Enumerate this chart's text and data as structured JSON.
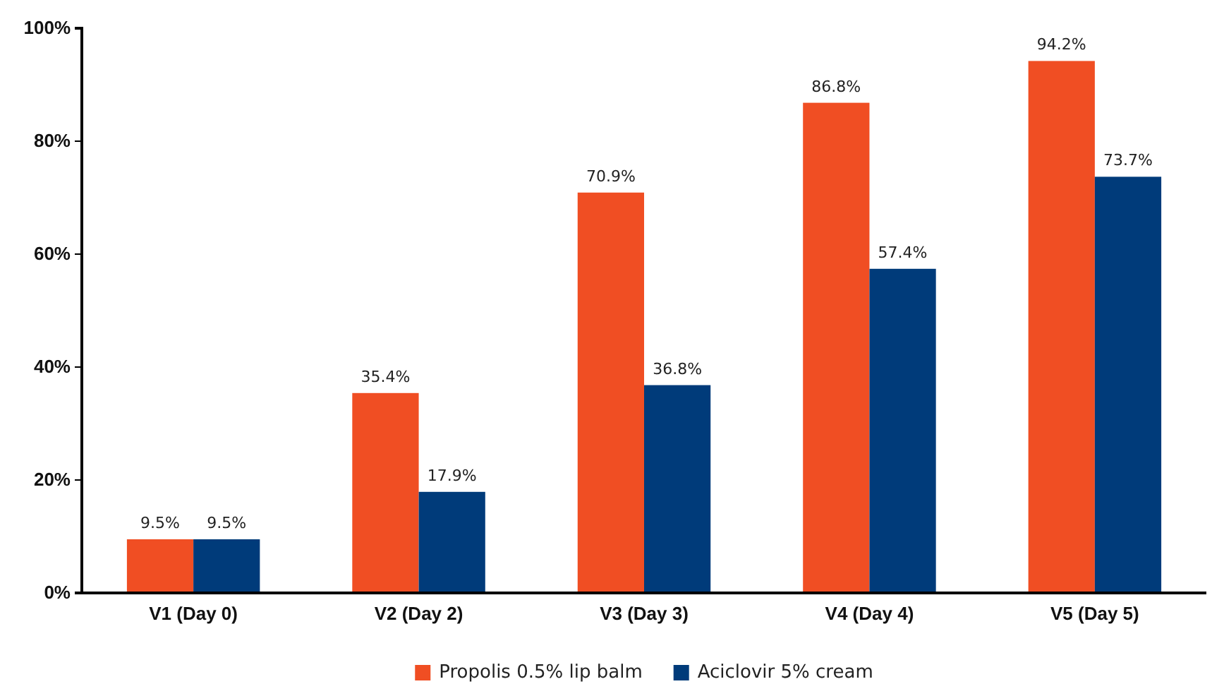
{
  "chart_data": {
    "type": "bar",
    "categories": [
      "V1 (Day 0)",
      "V2 (Day 2)",
      "V3 (Day 3)",
      "V4 (Day 4)",
      "V5 (Day 5)"
    ],
    "series": [
      {
        "name": "Propolis 0.5% lip balm",
        "color": "#f04e23",
        "values": [
          9.5,
          35.4,
          70.9,
          86.8,
          94.2
        ],
        "value_labels": [
          "9.5%",
          "35.4%",
          "70.9%",
          "86.8%",
          "94.2%"
        ]
      },
      {
        "name": "Aciclovir 5% cream",
        "color": "#003b7a",
        "values": [
          9.5,
          17.9,
          36.8,
          57.4,
          73.7
        ],
        "value_labels": [
          "9.5%",
          "17.9%",
          "36.8%",
          "57.4%",
          "73.7%"
        ]
      }
    ],
    "ylim": [
      0,
      100
    ],
    "yticks": [
      {
        "value": 0,
        "label": "0%"
      },
      {
        "value": 20,
        "label": "20%"
      },
      {
        "value": 40,
        "label": "40%"
      },
      {
        "value": 60,
        "label": "60%"
      },
      {
        "value": 80,
        "label": "80%"
      },
      {
        "value": 100,
        "label": "100%"
      }
    ],
    "grid": false,
    "legend": "bottom"
  }
}
